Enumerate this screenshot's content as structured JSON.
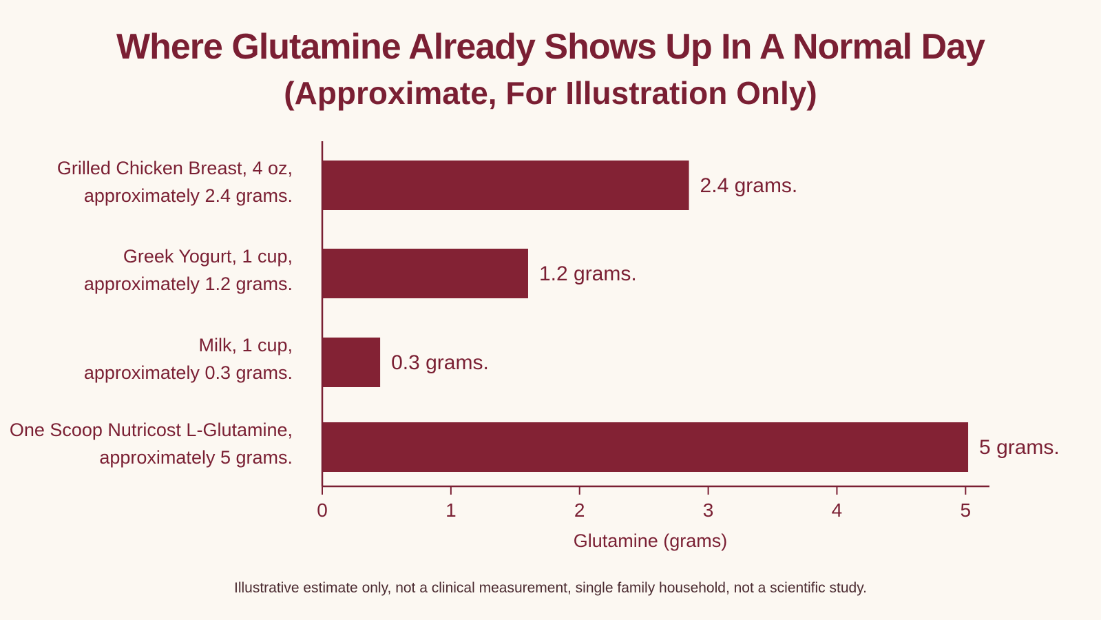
{
  "chart_data": {
    "type": "bar",
    "orientation": "horizontal",
    "title": "Where Glutamine Already Shows Up In A Normal Day",
    "subtitle": "(Approximate, For Illustration Only)",
    "categories": [
      [
        "Grilled Chicken Breast, 4 oz,",
        "approximately 2.4 grams."
      ],
      [
        "Greek Yogurt, 1 cup,",
        "approximately 1.2 grams."
      ],
      [
        "Milk, 1 cup,",
        "approximately 0.3 grams."
      ],
      [
        "One Scoop Nutricost L-Glutamine,",
        "approximately 5 grams."
      ]
    ],
    "values": [
      2.4,
      1.2,
      0.3,
      5
    ],
    "bar_positions": [
      2.85,
      1.6,
      0.45,
      5.02
    ],
    "data_labels": [
      "2.4 grams.",
      "1.2 grams.",
      "0.3 grams.",
      "5 grams."
    ],
    "xlabel": "Glutamine (grams)",
    "ylabel": "",
    "xlim": [
      0,
      5.1
    ],
    "xticks": [
      0,
      1,
      2,
      3,
      4,
      5
    ],
    "grid": false,
    "legend": "none",
    "bar_color": "#832234",
    "text_color": "#7a1f33"
  },
  "footnote": "Illustrative estimate only, not a clinical measurement, single family household, not a scientific study."
}
